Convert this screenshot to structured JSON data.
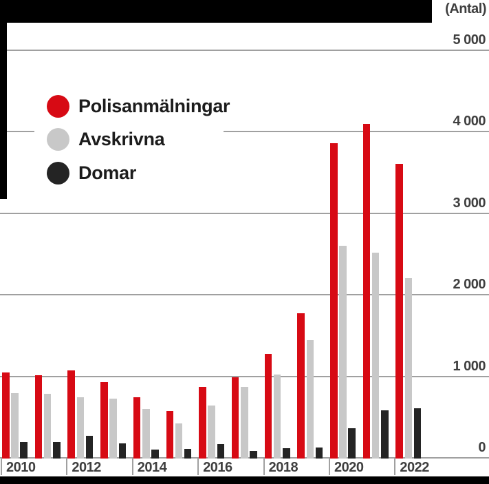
{
  "page": {
    "background_color": "#ffffff",
    "decor_color": "#000000"
  },
  "chart_data": {
    "type": "bar",
    "title": "",
    "unit_label": "(Antal)",
    "categories": [
      "2010",
      "2011",
      "2012",
      "2013",
      "2014",
      "2015",
      "2016",
      "2017",
      "2018",
      "2019",
      "2020",
      "2021",
      "2022"
    ],
    "x_tick_labels": [
      "2010",
      "2012",
      "2014",
      "2016",
      "2018",
      "2020",
      "2022"
    ],
    "series": [
      {
        "name": "Polisanmälningar",
        "color": "#d70a14",
        "values": [
          1055,
          1020,
          1080,
          940,
          755,
          580,
          880,
          1000,
          1285,
          1780,
          3865,
          4100,
          3610
        ]
      },
      {
        "name": "Avskrivna",
        "color": "#c8c8c8",
        "values": [
          800,
          790,
          750,
          735,
          605,
          430,
          650,
          880,
          1030,
          1450,
          2605,
          2520,
          2210
        ]
      },
      {
        "name": "Domar",
        "color": "#242424",
        "values": [
          205,
          200,
          275,
          185,
          110,
          115,
          180,
          95,
          130,
          135,
          375,
          590,
          620
        ]
      }
    ],
    "ylim": [
      0,
      5000
    ],
    "y_ticks": [
      {
        "value": 5000,
        "label": "5 000"
      },
      {
        "value": 4000,
        "label": "4 000"
      },
      {
        "value": 3000,
        "label": "3 000"
      },
      {
        "value": 2000,
        "label": "2 000"
      },
      {
        "value": 1000,
        "label": "1 000"
      },
      {
        "value": 0,
        "label": "0"
      }
    ],
    "grid": true,
    "legend_position": "upper-left",
    "colors": {
      "grid_line": "#a0a0a0",
      "axis_text": "#3f3f3f",
      "legend_text": "#1c1c1c"
    }
  }
}
